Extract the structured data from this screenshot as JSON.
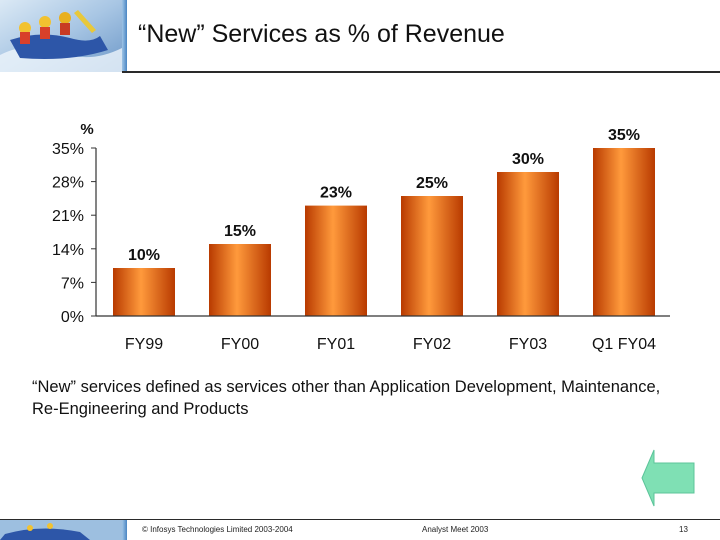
{
  "slide": {
    "title": "“New” Services as % of Revenue",
    "note": "“New” services defined as services other than Application Development, Maintenance, Re-Engineering and Products",
    "footer": {
      "copyright": "© Infosys Technologies Limited 2003-2004",
      "event": "Analyst Meet 2003",
      "page": "13"
    }
  },
  "colors": {
    "bar": "#f0640a",
    "bar_light": "#ff9a3c",
    "bar_dark": "#b83a00",
    "arrow": "#7fe0b4"
  },
  "chart_data": {
    "type": "bar",
    "title": "“New” Services as % of Revenue",
    "ylabel": "%",
    "xlabel": "",
    "ylim": [
      0,
      35
    ],
    "yticks": [
      0,
      7,
      14,
      21,
      28,
      35
    ],
    "ytick_labels": [
      "0%",
      "7%",
      "14%",
      "21%",
      "28%",
      "35%"
    ],
    "categories": [
      "FY99",
      "FY00",
      "FY01",
      "FY02",
      "FY03",
      "Q1 FY04"
    ],
    "values": [
      10,
      15,
      23,
      25,
      30,
      35
    ],
    "data_labels": [
      "10%",
      "15%",
      "23%",
      "25%",
      "30%",
      "35%"
    ]
  }
}
